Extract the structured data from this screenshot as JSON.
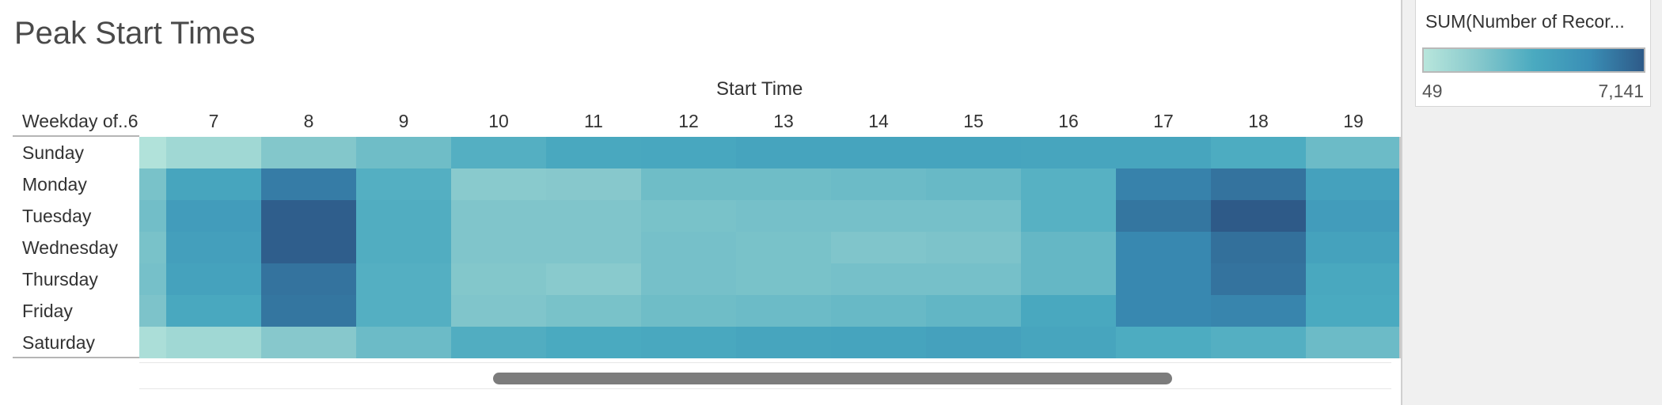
{
  "header": {
    "title": "Peak Start Times",
    "column_axis_title": "Start Time",
    "row_header_label": "Weekday of..6"
  },
  "legend": {
    "title": "SUM(Number of Recor...",
    "min_label": "49",
    "max_label": "7,141",
    "colors": [
      "#b8e6dc",
      "#86c8cc",
      "#4aaac0",
      "#3a8fb6",
      "#2e5a88"
    ]
  },
  "chart_data": {
    "type": "heatmap",
    "title": "Peak Start Times",
    "xlabel": "Start Time",
    "ylabel": "Weekday of..",
    "x_tick_labels": [
      "6",
      "7",
      "8",
      "9",
      "10",
      "11",
      "12",
      "13",
      "14",
      "15",
      "16",
      "17",
      "18",
      "19"
    ],
    "x": [
      6,
      7,
      8,
      9,
      10,
      11,
      12,
      13,
      14,
      15,
      16,
      17,
      18,
      19
    ],
    "y": [
      "Sunday",
      "Monday",
      "Tuesday",
      "Wednesday",
      "Thursday",
      "Friday",
      "Saturday"
    ],
    "value_range": [
      49,
      7141
    ],
    "values": [
      [
        300,
        900,
        1900,
        2500,
        3300,
        3700,
        3800,
        4000,
        4000,
        4000,
        3900,
        3900,
        3500,
        2600
      ],
      [
        2200,
        3900,
        6000,
        3300,
        1700,
        1800,
        2500,
        2500,
        2600,
        2700,
        3200,
        5800,
        6300,
        4200
      ],
      [
        2400,
        4500,
        7000,
        3400,
        2000,
        2000,
        2200,
        2300,
        2300,
        2300,
        3200,
        6200,
        7141,
        4500
      ],
      [
        2200,
        4300,
        7000,
        3400,
        2000,
        2000,
        2300,
        2200,
        2000,
        2100,
        2800,
        5600,
        6400,
        4100
      ],
      [
        2300,
        4100,
        6300,
        3300,
        1900,
        1700,
        2300,
        2200,
        2300,
        2300,
        2800,
        5600,
        6300,
        3700
      ],
      [
        2100,
        3700,
        6200,
        3300,
        2000,
        2200,
        2500,
        2600,
        2700,
        2900,
        3700,
        5600,
        5700,
        3600
      ],
      [
        500,
        900,
        1800,
        2600,
        3400,
        3600,
        3700,
        3900,
        4000,
        4200,
        3900,
        3500,
        3300,
        2600
      ]
    ]
  }
}
